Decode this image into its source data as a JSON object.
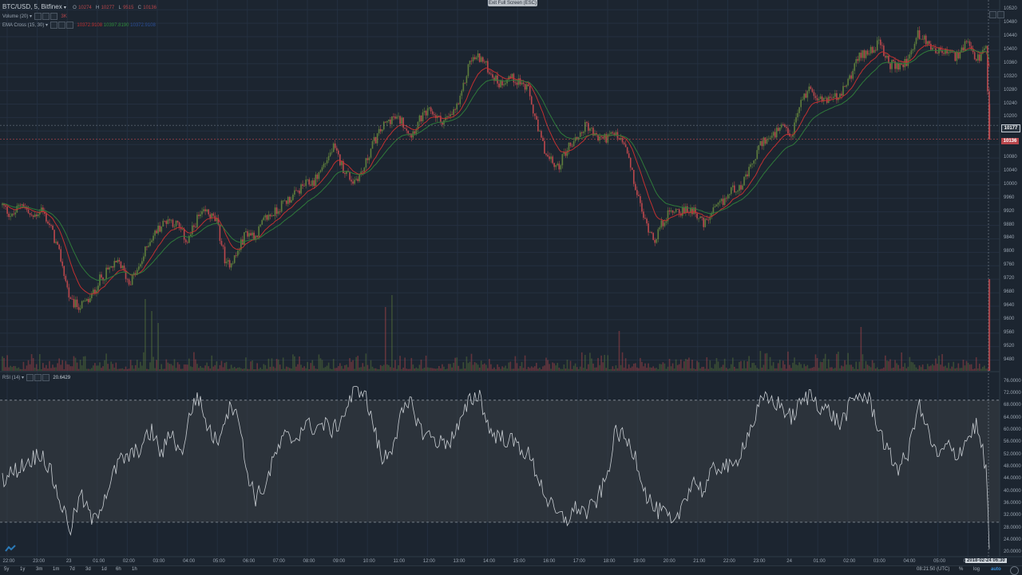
{
  "symbol": {
    "title": "BTC/USD, 5, Bitfinex",
    "dropdown_icon": "chevron-down-icon"
  },
  "ohlc": {
    "o_label": "O",
    "o": "10274",
    "h_label": "H",
    "h": "10277",
    "l_label": "L",
    "l": "9515",
    "c_label": "C",
    "c": "10136"
  },
  "volume_study": {
    "label": "Volume (20)",
    "value": "3K"
  },
  "ema_study": {
    "label": "EMA Cross (15, 30)",
    "v1": "10372.9108",
    "v2": "10397.8190",
    "v3": "10372.9108"
  },
  "rsi_study": {
    "label": "RSI (14)",
    "value": "20.6429"
  },
  "exit_fullscreen": "Exit Full Screen (ESC)",
  "price_axis": [
    "10520",
    "10480",
    "10440",
    "10400",
    "10360",
    "10320",
    "10280",
    "10240",
    "10200",
    "10160",
    "10120",
    "10080",
    "10040",
    "10000",
    "9960",
    "9920",
    "9880",
    "9840",
    "9800",
    "9760",
    "9720",
    "9680",
    "9640",
    "9600",
    "9560",
    "9520",
    "9480"
  ],
  "price_markers": {
    "high_label": "10177",
    "last_label": "10136"
  },
  "rsi_axis": [
    "76.0000",
    "72.0000",
    "68.0000",
    "64.0000",
    "60.0000",
    "56.0000",
    "52.0000",
    "48.0000",
    "44.0000",
    "40.0000",
    "36.0000",
    "32.0000",
    "28.0000",
    "24.0000",
    "20.0000"
  ],
  "time_axis": [
    "22:00",
    "23:00",
    "23",
    "01:00",
    "02:00",
    "03:00",
    "04:00",
    "05:00",
    "06:00",
    "07:00",
    "08:00",
    "09:00",
    "10:00",
    "11:00",
    "12:00",
    "13:00",
    "14:00",
    "15:00",
    "16:00",
    "17:00",
    "18:00",
    "19:00",
    "20:00",
    "21:00",
    "22:00",
    "23:00",
    "24",
    "01:00",
    "02:00",
    "03:00",
    "04:00",
    "05:00",
    "06:00"
  ],
  "time_cursor": "2018-02-24 06:30",
  "ranges": [
    "5y",
    "1y",
    "3m",
    "1m",
    "7d",
    "3d",
    "1d",
    "6h",
    "1h"
  ],
  "clock": "08:21:50 (UTC)",
  "axis_buttons": {
    "percent": "%",
    "log": "log",
    "auto": "auto"
  },
  "colors": {
    "background": "#1c2530",
    "up": "#5e7d3c",
    "down": "#b9474c",
    "ema_fast": "#c13030",
    "ema_slow": "#2f7a3a",
    "rsi_line": "#c8cdd2",
    "rsi_band": "#3a4046"
  },
  "chart_data": {
    "type": "candlestick",
    "title": "BTC/USD, 5, Bitfinex",
    "y_range": [
      9460,
      10530
    ],
    "rsi_range": [
      19,
      77
    ],
    "rsi_bands": [
      30,
      70
    ],
    "x_start": "22:00",
    "x_end": "06:30",
    "anchors_close": [
      [
        0,
        9940
      ],
      [
        6,
        9905
      ],
      [
        12,
        9950
      ],
      [
        18,
        9900
      ],
      [
        24,
        9930
      ],
      [
        30,
        9870
      ],
      [
        36,
        9780
      ],
      [
        42,
        9650
      ],
      [
        48,
        9640
      ],
      [
        54,
        9660
      ],
      [
        60,
        9720
      ],
      [
        66,
        9750
      ],
      [
        72,
        9770
      ],
      [
        78,
        9710
      ],
      [
        84,
        9750
      ],
      [
        90,
        9830
      ],
      [
        96,
        9870
      ],
      [
        102,
        9900
      ],
      [
        108,
        9880
      ],
      [
        114,
        9830
      ],
      [
        120,
        9900
      ],
      [
        126,
        9920
      ],
      [
        132,
        9890
      ],
      [
        138,
        9760
      ],
      [
        144,
        9790
      ],
      [
        150,
        9860
      ],
      [
        156,
        9850
      ],
      [
        162,
        9900
      ],
      [
        168,
        9920
      ],
      [
        174,
        9950
      ],
      [
        180,
        9970
      ],
      [
        186,
        10000
      ],
      [
        192,
        10010
      ],
      [
        198,
        10060
      ],
      [
        204,
        10110
      ],
      [
        210,
        10050
      ],
      [
        216,
        10010
      ],
      [
        222,
        10040
      ],
      [
        228,
        10120
      ],
      [
        234,
        10170
      ],
      [
        240,
        10200
      ],
      [
        246,
        10190
      ],
      [
        252,
        10150
      ],
      [
        258,
        10200
      ],
      [
        264,
        10220
      ],
      [
        270,
        10190
      ],
      [
        276,
        10200
      ],
      [
        282,
        10250
      ],
      [
        288,
        10370
      ],
      [
        294,
        10380
      ],
      [
        300,
        10340
      ],
      [
        306,
        10300
      ],
      [
        312,
        10320
      ],
      [
        318,
        10310
      ],
      [
        324,
        10280
      ],
      [
        330,
        10160
      ],
      [
        336,
        10080
      ],
      [
        342,
        10050
      ],
      [
        348,
        10110
      ],
      [
        354,
        10140
      ],
      [
        360,
        10180
      ],
      [
        366,
        10140
      ],
      [
        372,
        10140
      ],
      [
        378,
        10150
      ],
      [
        384,
        10110
      ],
      [
        390,
        9990
      ],
      [
        396,
        9890
      ],
      [
        402,
        9840
      ],
      [
        408,
        9900
      ],
      [
        414,
        9930
      ],
      [
        420,
        9920
      ],
      [
        426,
        9930
      ],
      [
        432,
        9880
      ],
      [
        438,
        9920
      ],
      [
        444,
        9950
      ],
      [
        450,
        9990
      ],
      [
        456,
        10000
      ],
      [
        462,
        10060
      ],
      [
        468,
        10130
      ],
      [
        474,
        10140
      ],
      [
        480,
        10170
      ],
      [
        486,
        10140
      ],
      [
        492,
        10250
      ],
      [
        498,
        10290
      ],
      [
        504,
        10250
      ],
      [
        510,
        10260
      ],
      [
        516,
        10260
      ],
      [
        522,
        10320
      ],
      [
        528,
        10380
      ],
      [
        534,
        10400
      ],
      [
        540,
        10420
      ],
      [
        546,
        10360
      ],
      [
        552,
        10350
      ],
      [
        558,
        10370
      ],
      [
        564,
        10450
      ],
      [
        570,
        10420
      ],
      [
        576,
        10400
      ],
      [
        582,
        10390
      ],
      [
        588,
        10380
      ],
      [
        594,
        10420
      ],
      [
        600,
        10370
      ],
      [
        606,
        10400
      ],
      [
        608,
        10136
      ]
    ],
    "anchors_rsi": [
      [
        0,
        44
      ],
      [
        8,
        47
      ],
      [
        16,
        50
      ],
      [
        24,
        53
      ],
      [
        30,
        46
      ],
      [
        36,
        36
      ],
      [
        42,
        28
      ],
      [
        48,
        39
      ],
      [
        56,
        30
      ],
      [
        64,
        40
      ],
      [
        72,
        50
      ],
      [
        80,
        52
      ],
      [
        86,
        55
      ],
      [
        92,
        60
      ],
      [
        98,
        52
      ],
      [
        104,
        60
      ],
      [
        110,
        52
      ],
      [
        116,
        66
      ],
      [
        120,
        72
      ],
      [
        126,
        62
      ],
      [
        132,
        56
      ],
      [
        138,
        66
      ],
      [
        144,
        69
      ],
      [
        150,
        48
      ],
      [
        156,
        38
      ],
      [
        162,
        42
      ],
      [
        168,
        52
      ],
      [
        174,
        58
      ],
      [
        180,
        57
      ],
      [
        186,
        62
      ],
      [
        192,
        61
      ],
      [
        198,
        62
      ],
      [
        204,
        60
      ],
      [
        210,
        65
      ],
      [
        216,
        72
      ],
      [
        222,
        74
      ],
      [
        228,
        63
      ],
      [
        234,
        50
      ],
      [
        240,
        55
      ],
      [
        246,
        65
      ],
      [
        252,
        69
      ],
      [
        258,
        60
      ],
      [
        264,
        58
      ],
      [
        270,
        56
      ],
      [
        276,
        57
      ],
      [
        282,
        62
      ],
      [
        288,
        70
      ],
      [
        294,
        72
      ],
      [
        300,
        60
      ],
      [
        306,
        58
      ],
      [
        312,
        57
      ],
      [
        318,
        55
      ],
      [
        324,
        52
      ],
      [
        330,
        45
      ],
      [
        336,
        37
      ],
      [
        342,
        32
      ],
      [
        348,
        31
      ],
      [
        354,
        35
      ],
      [
        360,
        33
      ],
      [
        366,
        37
      ],
      [
        372,
        44
      ],
      [
        378,
        60
      ],
      [
        384,
        57
      ],
      [
        390,
        52
      ],
      [
        396,
        40
      ],
      [
        402,
        34
      ],
      [
        408,
        33
      ],
      [
        414,
        28
      ],
      [
        420,
        38
      ],
      [
        426,
        44
      ],
      [
        432,
        40
      ],
      [
        438,
        47
      ],
      [
        444,
        49
      ],
      [
        450,
        47
      ],
      [
        456,
        55
      ],
      [
        462,
        62
      ],
      [
        468,
        70
      ],
      [
        474,
        70
      ],
      [
        480,
        68
      ],
      [
        486,
        64
      ],
      [
        492,
        69
      ],
      [
        498,
        72
      ],
      [
        504,
        68
      ],
      [
        510,
        66
      ],
      [
        516,
        62
      ],
      [
        522,
        68
      ],
      [
        528,
        72
      ],
      [
        534,
        70
      ],
      [
        540,
        61
      ],
      [
        546,
        52
      ],
      [
        552,
        48
      ],
      [
        558,
        52
      ],
      [
        564,
        69
      ],
      [
        570,
        60
      ],
      [
        576,
        51
      ],
      [
        582,
        55
      ],
      [
        588,
        52
      ],
      [
        594,
        57
      ],
      [
        600,
        62
      ],
      [
        606,
        48
      ],
      [
        608,
        20.6
      ]
    ],
    "volume_spikes": [
      [
        88,
        12
      ],
      [
        92,
        9
      ],
      [
        96,
        6
      ],
      [
        236,
        10
      ],
      [
        240,
        13
      ],
      [
        380,
        4
      ],
      [
        529,
        5
      ],
      [
        608,
        17
      ]
    ]
  }
}
